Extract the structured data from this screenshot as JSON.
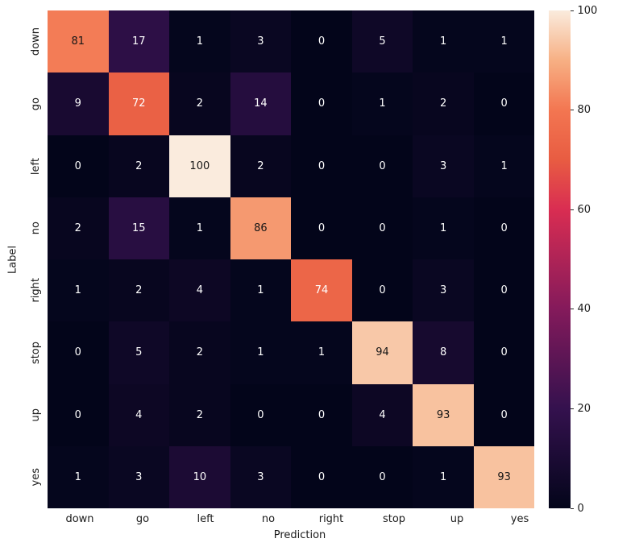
{
  "chart_data": {
    "type": "heatmap",
    "title": "",
    "xlabel": "Prediction",
    "ylabel": "Label",
    "categories": [
      "down",
      "go",
      "left",
      "no",
      "right",
      "stop",
      "up",
      "yes"
    ],
    "values": [
      [
        81,
        17,
        1,
        3,
        0,
        5,
        1,
        1
      ],
      [
        9,
        72,
        2,
        14,
        0,
        1,
        2,
        0
      ],
      [
        0,
        2,
        100,
        2,
        0,
        0,
        3,
        1
      ],
      [
        2,
        15,
        1,
        86,
        0,
        0,
        1,
        0
      ],
      [
        1,
        2,
        4,
        1,
        74,
        0,
        3,
        0
      ],
      [
        0,
        5,
        2,
        1,
        1,
        94,
        8,
        0
      ],
      [
        0,
        4,
        2,
        0,
        0,
        4,
        93,
        0
      ],
      [
        1,
        3,
        10,
        3,
        0,
        0,
        1,
        93
      ]
    ],
    "vmin": 0,
    "vmax": 100,
    "colorbar_ticks": [
      0,
      20,
      40,
      60,
      80,
      100
    ],
    "legend_position": "right-colorbar",
    "grid": false,
    "colormap": "rocket",
    "colormap_stops": [
      [
        0.0,
        [
          3,
          5,
          26
        ]
      ],
      [
        0.2,
        [
          52,
          17,
          78
        ]
      ],
      [
        0.4,
        [
          132,
          26,
          91
        ]
      ],
      [
        0.6,
        [
          217,
          45,
          82
        ]
      ],
      [
        0.7,
        [
          232,
          92,
          66
        ]
      ],
      [
        0.8,
        [
          243,
          118,
          81
        ]
      ],
      [
        0.9,
        [
          247,
          176,
          132
        ]
      ],
      [
        1.0,
        [
          250,
          235,
          221
        ]
      ]
    ],
    "annotation_dark_text_color": "#161616",
    "annotation_light_text_color": "#ffffff"
  }
}
